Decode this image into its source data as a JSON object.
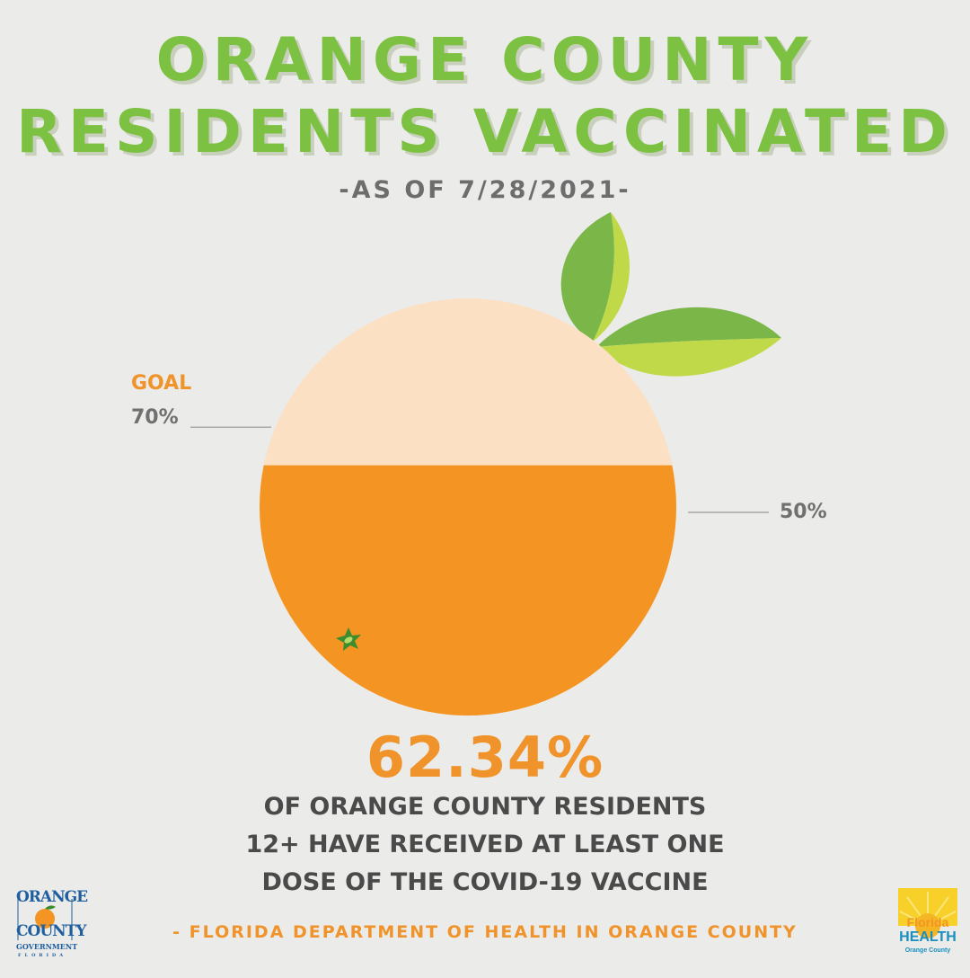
{
  "header": {
    "title_line1": "ORANGE COUNTY",
    "title_line2": "RESIDENTS VACCINATED",
    "as_of": "-AS OF 7/28/2021-"
  },
  "chart_data": {
    "type": "progress-fill",
    "value_percent": 62.34,
    "markers": [
      {
        "label": "GOAL",
        "value_text": "70%",
        "value": 70
      },
      {
        "label": "",
        "value_text": "50%",
        "value": 50
      }
    ],
    "colors": {
      "filled": "#f39423",
      "unfilled": "#fce0c4",
      "leaf_dark": "#7ab648",
      "leaf_light": "#c0d949",
      "stem": "#3d8c2e"
    }
  },
  "headline": {
    "percent": "62.34%",
    "line1": "OF ORANGE COUNTY RESIDENTS",
    "line2": "12+ HAVE RECEIVED AT LEAST ONE",
    "line3": "DOSE OF THE COVID-19 VACCINE"
  },
  "source": "- FLORIDA DEPARTMENT OF HEALTH IN ORANGE COUNTY",
  "logos": {
    "left": {
      "line1": "ORANGE",
      "line2": "COUNTY",
      "line3": "GOVERNMENT",
      "line4": "FLORIDA"
    },
    "right": {
      "line1": "Florida",
      "line2": "HEALTH",
      "line3": "Orange County"
    }
  },
  "colors": {
    "title": "#7dc143",
    "accent": "#f0932b",
    "text": "#4a4a4a",
    "background": "#ebebe9"
  }
}
